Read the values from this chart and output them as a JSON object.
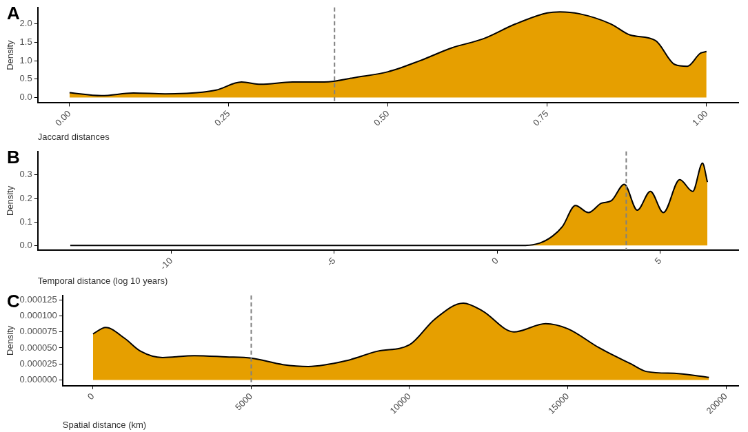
{
  "chart_data": [
    {
      "type": "area",
      "title": "A",
      "xlabel": "Jaccard distances",
      "ylabel": "Density",
      "color": "#e69f00",
      "grid": false,
      "x": [
        0,
        0.05,
        0.1,
        0.15,
        0.2,
        0.23,
        0.27,
        0.3,
        0.35,
        0.4,
        0.45,
        0.5,
        0.55,
        0.6,
        0.65,
        0.7,
        0.75,
        0.77,
        0.8,
        0.85,
        0.88,
        0.92,
        0.95,
        0.97,
        0.99,
        1.0
      ],
      "values": [
        0.13,
        0.05,
        0.12,
        0.1,
        0.13,
        0.2,
        0.42,
        0.36,
        0.42,
        0.42,
        0.55,
        0.7,
        1.0,
        1.35,
        1.6,
        2.0,
        2.3,
        2.33,
        2.28,
        2.0,
        1.7,
        1.55,
        0.9,
        0.85,
        1.2,
        1.25
      ],
      "xlim": [
        -0.05,
        1.05
      ],
      "ylim": [
        -0.15,
        2.45
      ],
      "xticks": [
        {
          "value": 0,
          "label": "0.00"
        },
        {
          "value": 0.25,
          "label": "0.25"
        },
        {
          "value": 0.5,
          "label": "0.50"
        },
        {
          "value": 0.75,
          "label": "0.75"
        },
        {
          "value": 1,
          "label": "1.00"
        }
      ],
      "yticks": [
        {
          "value": 0,
          "label": "0.0"
        },
        {
          "value": 0.5,
          "label": "0.5"
        },
        {
          "value": 1,
          "label": "1.0"
        },
        {
          "value": 1.5,
          "label": "1.5"
        },
        {
          "value": 2,
          "label": "2.0"
        }
      ],
      "ref_lines": [
        {
          "axis": "x",
          "value": 0.416,
          "color": "#808080",
          "line_style": "dashed"
        }
      ]
    },
    {
      "type": "area",
      "title": "B",
      "xlabel": "Temporal distance (log 10 years)",
      "ylabel": "Density",
      "color": "#e69f00",
      "grid": false,
      "x": [
        -13.1,
        0.8,
        1.3,
        1.7,
        2.0,
        2.4,
        2.8,
        3.2,
        3.5,
        3.9,
        4.3,
        4.7,
        5.1,
        5.6,
        6.0,
        6.3,
        6.45
      ],
      "values": [
        0,
        0,
        0.01,
        0.04,
        0.08,
        0.17,
        0.14,
        0.18,
        0.19,
        0.26,
        0.15,
        0.23,
        0.14,
        0.28,
        0.23,
        0.35,
        0.27
      ],
      "xlim": [
        -14.1,
        7.4
      ],
      "ylim": [
        -0.02,
        0.4
      ],
      "xticks": [
        -10,
        -5,
        0,
        5
      ],
      "yticks": [
        {
          "value": 0,
          "label": "0.0"
        },
        {
          "value": 0.1,
          "label": "0.1"
        },
        {
          "value": 0.2,
          "label": "0.2"
        },
        {
          "value": 0.3,
          "label": "0.3"
        }
      ],
      "ref_lines": [
        {
          "axis": "x",
          "value": 3.96,
          "color": "#808080",
          "line_style": "dashed"
        }
      ]
    },
    {
      "type": "area",
      "title": "C",
      "xlabel": "Spatial distance (km)",
      "ylabel": "Density",
      "color": "#e69f00",
      "grid": false,
      "x": [
        0,
        400,
        1000,
        1500,
        2200,
        3200,
        4200,
        5000,
        6000,
        6800,
        8000,
        9000,
        10000,
        10800,
        11700,
        12300,
        13300,
        14300,
        15000,
        16000,
        17000,
        17500,
        18500,
        19460
      ],
      "values": [
        7.2e-05,
        8.2e-05,
        6.5e-05,
        4.5e-05,
        3.5e-05,
        3.8e-05,
        3.6e-05,
        3.4e-05,
        2.4e-05,
        2.1e-05,
        3e-05,
        4.5e-05,
        5.5e-05,
        9.5e-05,
        0.00012,
        0.000108,
        7.5e-05,
        8.8e-05,
        8e-05,
        5e-05,
        2.5e-05,
        1.3e-05,
        1e-05,
        4e-06
      ],
      "xlim": [
        -960,
        20390
      ],
      "ylim": [
        -9e-06,
        0.000132
      ],
      "xticks": [
        0,
        5000,
        10000,
        15000,
        20000
      ],
      "yticks": [
        {
          "value": 0,
          "label": "0.000000"
        },
        {
          "value": 2.5e-05,
          "label": "0.000025"
        },
        {
          "value": 5e-05,
          "label": "0.000050"
        },
        {
          "value": 7.5e-05,
          "label": "0.000075"
        },
        {
          "value": 0.0001,
          "label": "0.000100"
        },
        {
          "value": 0.000125,
          "label": "0.000125"
        }
      ],
      "ref_lines": [
        {
          "axis": "x",
          "value": 5000,
          "color": "#808080",
          "line_style": "dashed"
        }
      ]
    }
  ]
}
